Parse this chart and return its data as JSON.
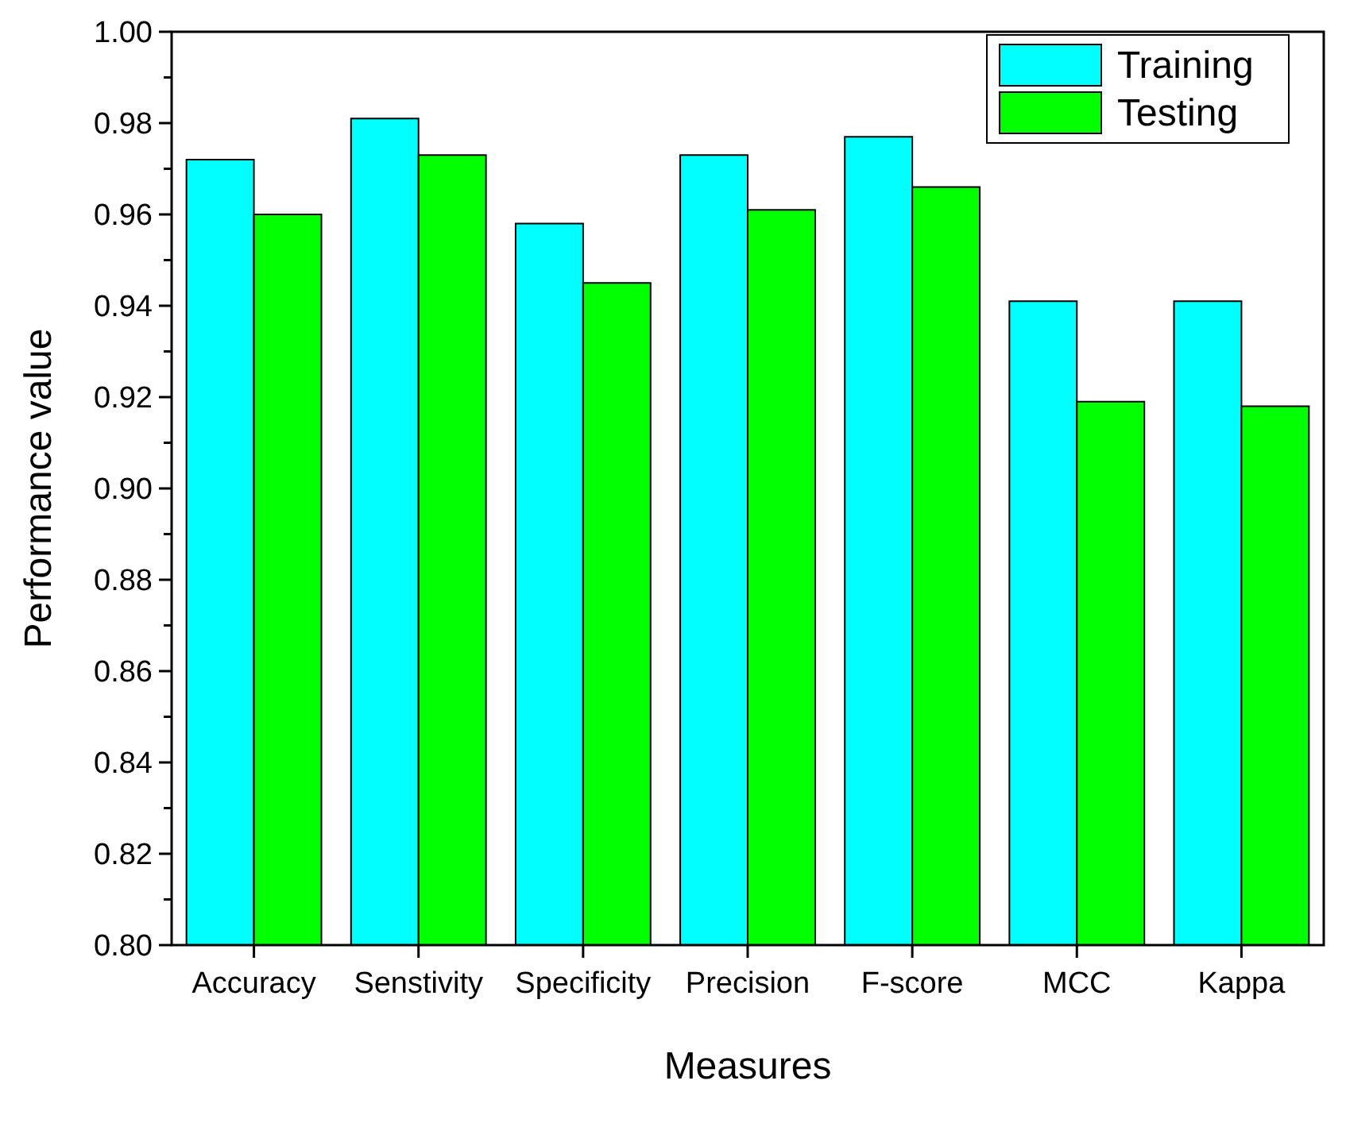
{
  "chart_data": {
    "type": "bar",
    "xlabel": "Measures",
    "ylabel": "Performance value",
    "categories": [
      "Accuracy",
      "Senstivity",
      "Specificity",
      "Precision",
      "F-score",
      "MCC",
      "Kappa"
    ],
    "series": [
      {
        "name": "Training",
        "color": "#00ffff",
        "values": [
          0.972,
          0.981,
          0.958,
          0.973,
          0.977,
          0.941,
          0.941
        ]
      },
      {
        "name": "Testing",
        "color": "#00ff00",
        "values": [
          0.96,
          0.973,
          0.945,
          0.961,
          0.966,
          0.919,
          0.918
        ]
      }
    ],
    "ylim": [
      0.8,
      1.0
    ],
    "yticks": [
      {
        "value": 0.8,
        "label": "0.80"
      },
      {
        "value": 0.81,
        "label": null
      },
      {
        "value": 0.82,
        "label": "0.82"
      },
      {
        "value": 0.83,
        "label": null
      },
      {
        "value": 0.84,
        "label": "0.84"
      },
      {
        "value": 0.85,
        "label": null
      },
      {
        "value": 0.86,
        "label": "0.86"
      },
      {
        "value": 0.87,
        "label": null
      },
      {
        "value": 0.88,
        "label": "0.88"
      },
      {
        "value": 0.89,
        "label": null
      },
      {
        "value": 0.9,
        "label": "0.90"
      },
      {
        "value": 0.91,
        "label": null
      },
      {
        "value": 0.92,
        "label": "0.92"
      },
      {
        "value": 0.93,
        "label": null
      },
      {
        "value": 0.94,
        "label": "0.94"
      },
      {
        "value": 0.95,
        "label": null
      },
      {
        "value": 0.96,
        "label": "0.96"
      },
      {
        "value": 0.97,
        "label": null
      },
      {
        "value": 0.98,
        "label": "0.98"
      },
      {
        "value": 0.99,
        "label": null
      },
      {
        "value": 1.0,
        "label": "1.00"
      }
    ],
    "grid": false,
    "legend": "top right"
  }
}
